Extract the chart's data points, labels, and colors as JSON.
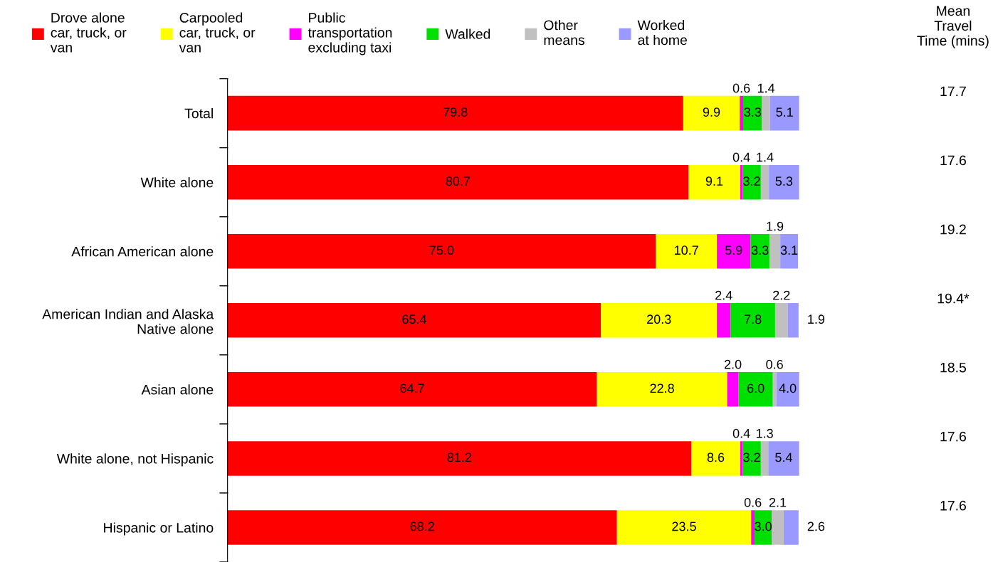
{
  "chart_data": {
    "type": "bar",
    "orientation": "horizontal",
    "stacked": true,
    "legend": "top",
    "grid": false,
    "tick_labels": "y",
    "categories": [
      "Total",
      "White alone",
      "African American alone",
      "American Indian and Alaska\nNative alone",
      "Asian alone",
      "White alone, not Hispanic",
      "Hispanic or Latino"
    ],
    "series": [
      {
        "name": "Drove alone\ncar, truck, or\nvan",
        "color": "#ff0000",
        "values": [
          79.8,
          80.7,
          75.0,
          65.4,
          64.7,
          81.2,
          68.2
        ],
        "value_labels": [
          "79.8",
          "80.7",
          "75.0",
          "65.4",
          "64.7",
          "81.2",
          "68.2"
        ]
      },
      {
        "name": "Carpooled\ncar, truck, or\nvan",
        "color": "#ffff00",
        "values": [
          9.9,
          9.1,
          10.7,
          20.3,
          22.8,
          8.6,
          23.5
        ],
        "value_labels": [
          "9.9",
          "9.1",
          "10.7",
          "20.3",
          "22.8",
          "8.6",
          "23.5"
        ]
      },
      {
        "name": "Public\ntransportation\nexcluding taxi",
        "color": "#ff00ff",
        "values": [
          0.6,
          0.4,
          5.9,
          2.4,
          2.0,
          0.4,
          0.6
        ],
        "value_labels": [
          "0.6",
          "0.4",
          "5.9",
          "2.4",
          "2.0",
          "0.4",
          "0.6"
        ]
      },
      {
        "name": "Walked",
        "color": "#00e000",
        "values": [
          3.3,
          3.2,
          3.3,
          7.8,
          6.0,
          3.2,
          3.0
        ],
        "value_labels": [
          "3.3",
          "3.2",
          "3.3",
          "7.8",
          "6.0",
          "3.2",
          "3.0"
        ]
      },
      {
        "name": "Other\nmeans",
        "color": "#c0c0c0",
        "values": [
          1.4,
          1.4,
          1.9,
          2.2,
          0.6,
          1.3,
          2.1
        ],
        "value_labels": [
          "1.4",
          "1.4",
          "1.9",
          "2.2",
          "0.6",
          "1.3",
          "2.1"
        ]
      },
      {
        "name": "Worked\nat home",
        "color": "#9999ff",
        "values": [
          5.1,
          5.3,
          3.1,
          1.9,
          4.0,
          5.4,
          2.6
        ],
        "value_labels": [
          "5.1",
          "5.3",
          "3.1",
          "1.9",
          "4.0",
          "5.4",
          "2.6"
        ]
      }
    ],
    "annotations": [
      "Mean\nTravel\nTime (mins)",
      "17.7",
      "17.6",
      "19.2",
      "19.4*",
      "18.5",
      "17.6",
      "17.6"
    ]
  }
}
